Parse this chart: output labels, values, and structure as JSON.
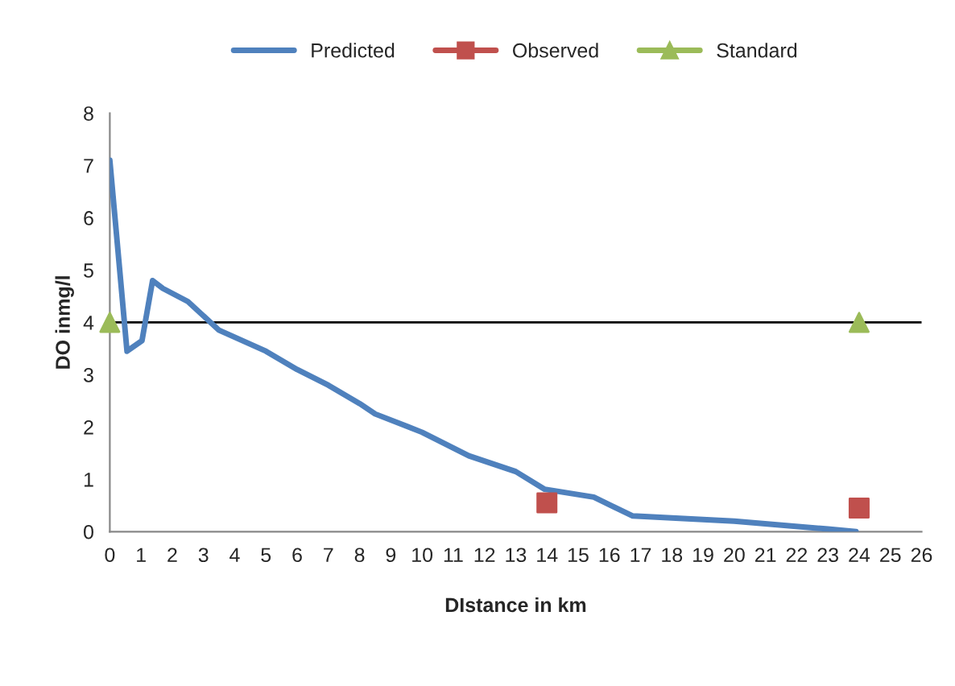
{
  "chart_data": {
    "type": "line",
    "xlabel": "DIstance in km",
    "ylabel": "DO inmg/l",
    "xlim": [
      0,
      26
    ],
    "xticks": [
      0,
      1,
      2,
      3,
      4,
      5,
      6,
      7,
      8,
      9,
      10,
      11,
      12,
      13,
      14,
      15,
      16,
      17,
      18,
      19,
      20,
      21,
      22,
      23,
      24,
      25,
      26
    ],
    "ylim": [
      0,
      8
    ],
    "yticks": [
      0,
      1,
      2,
      3,
      4,
      5,
      6,
      7,
      8
    ],
    "grid": false,
    "legend": "top",
    "series": [
      {
        "name": "Predicted",
        "color": "#4f81bd",
        "marker": "none",
        "x": [
          0,
          0.55,
          1.03,
          1.37,
          1.7,
          2.5,
          3.5,
          5,
          6,
          7,
          8,
          8.5,
          10,
          11.5,
          13,
          13.93,
          15.5,
          16.75,
          20,
          23,
          23.9
        ],
        "values": [
          7.1,
          3.45,
          3.65,
          4.8,
          4.65,
          4.4,
          3.85,
          3.45,
          3.1,
          2.8,
          2.45,
          2.25,
          1.9,
          1.45,
          1.15,
          0.81,
          0.66,
          0.3,
          0.2,
          0.05,
          0
        ]
      },
      {
        "name": "Observed",
        "type": "scatter",
        "color": "#c0504d",
        "marker": "square",
        "x": [
          14,
          24
        ],
        "values": [
          0.55,
          0.45
        ]
      },
      {
        "name": "Standard",
        "type": "scatter",
        "color": "#9bbb59",
        "marker": "triangle",
        "x": [
          0,
          24
        ],
        "values": [
          4,
          4
        ]
      }
    ],
    "ref_lines": [
      {
        "axis": "y",
        "value": 4,
        "color": "#000000"
      }
    ]
  }
}
